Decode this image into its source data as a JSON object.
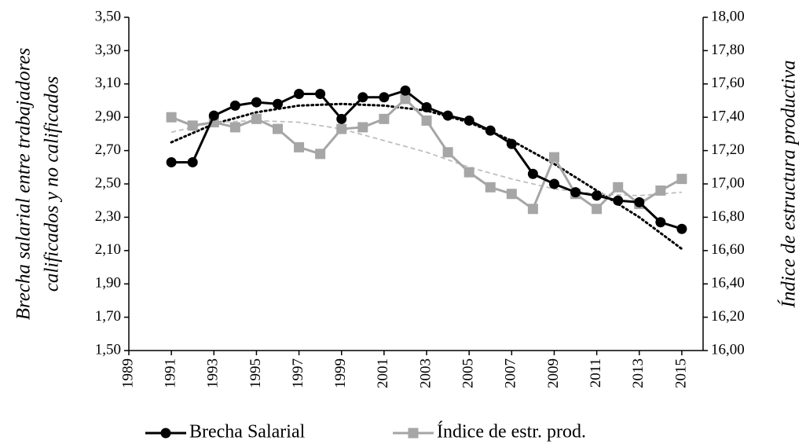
{
  "chart_data": {
    "type": "line",
    "y_label": [
      "Brecha salarial entre trabajadores",
      "calificados y no calificados"
    ],
    "y2_label": "Índice de estructura productiva",
    "x": [
      1991,
      1992,
      1993,
      1994,
      1995,
      1996,
      1997,
      1998,
      1999,
      2000,
      2001,
      2002,
      2003,
      2004,
      2005,
      2006,
      2007,
      2008,
      2009,
      2010,
      2011,
      2012,
      2013,
      2014,
      2015
    ],
    "series": [
      {
        "name": "Brecha Salarial",
        "color": "#000000",
        "marker": "circle",
        "values": [
          2.63,
          2.63,
          2.91,
          2.97,
          2.99,
          2.98,
          3.04,
          3.04,
          2.89,
          3.02,
          3.02,
          3.06,
          2.96,
          2.91,
          2.88,
          2.82,
          2.74,
          2.56,
          2.5,
          2.45,
          2.43,
          2.4,
          2.39,
          2.27,
          2.23
        ]
      },
      {
        "name": "Índice de estr. prod.",
        "color": "#a6a6a6",
        "marker": "square",
        "axis": "y2",
        "values": [
          17.4,
          17.35,
          17.37,
          17.34,
          17.39,
          17.33,
          17.22,
          17.18,
          17.33,
          17.34,
          17.39,
          17.51,
          17.38,
          17.19,
          17.07,
          16.98,
          16.94,
          16.85,
          17.16,
          16.94,
          16.85,
          16.98,
          16.88,
          16.96,
          17.03
        ]
      }
    ],
    "trendlines": [
      {
        "color": "#000000",
        "dash": "dotted",
        "x": [
          1991,
          1993,
          1995,
          1997,
          1999,
          2001,
          2003,
          2005,
          2007,
          2009,
          2011,
          2013,
          2015
        ],
        "values": [
          2.75,
          2.86,
          2.93,
          2.97,
          2.98,
          2.97,
          2.94,
          2.87,
          2.76,
          2.62,
          2.46,
          2.3,
          2.11
        ]
      },
      {
        "color": "#bfbfbf",
        "dash": "dashed",
        "axis": "y2",
        "x": [
          1991,
          1993,
          1995,
          1997,
          1999,
          2001,
          2003,
          2005,
          2007,
          2009,
          2011,
          2013,
          2015
        ],
        "values": [
          17.31,
          17.37,
          17.38,
          17.37,
          17.33,
          17.26,
          17.19,
          17.1,
          17.03,
          16.97,
          16.94,
          16.93,
          16.95
        ]
      }
    ],
    "xlim": [
      1989,
      2016
    ],
    "xticks": [
      1989,
      1991,
      1993,
      1995,
      1997,
      1999,
      2001,
      2003,
      2005,
      2007,
      2009,
      2011,
      2013,
      2015
    ],
    "ylim": [
      1.5,
      3.5
    ],
    "yticks": [
      {
        "value": 1.5,
        "label": "1,50"
      },
      {
        "value": 1.7,
        "label": "1,70"
      },
      {
        "value": 1.9,
        "label": "1,90"
      },
      {
        "value": 2.1,
        "label": "2,10"
      },
      {
        "value": 2.3,
        "label": "2,30"
      },
      {
        "value": 2.5,
        "label": "2,50"
      },
      {
        "value": 2.7,
        "label": "2,70"
      },
      {
        "value": 2.9,
        "label": "2,90"
      },
      {
        "value": 3.1,
        "label": "3,10"
      },
      {
        "value": 3.3,
        "label": "3,30"
      },
      {
        "value": 3.5,
        "label": "3,50"
      }
    ],
    "y2lim": [
      16,
      18
    ],
    "y2ticks": [
      {
        "value": 16,
        "label": "16,00"
      },
      {
        "value": 16.2,
        "label": "16,20"
      },
      {
        "value": 16.4,
        "label": "16,40"
      },
      {
        "value": 16.6,
        "label": "16,60"
      },
      {
        "value": 16.8,
        "label": "16,80"
      },
      {
        "value": 17,
        "label": "17,00"
      },
      {
        "value": 17.2,
        "label": "17,20"
      },
      {
        "value": 17.4,
        "label": "17,40"
      },
      {
        "value": 17.6,
        "label": "17,60"
      },
      {
        "value": 17.8,
        "label": "17,80"
      },
      {
        "value": 18,
        "label": "18,00"
      }
    ],
    "legend": "bottom"
  }
}
